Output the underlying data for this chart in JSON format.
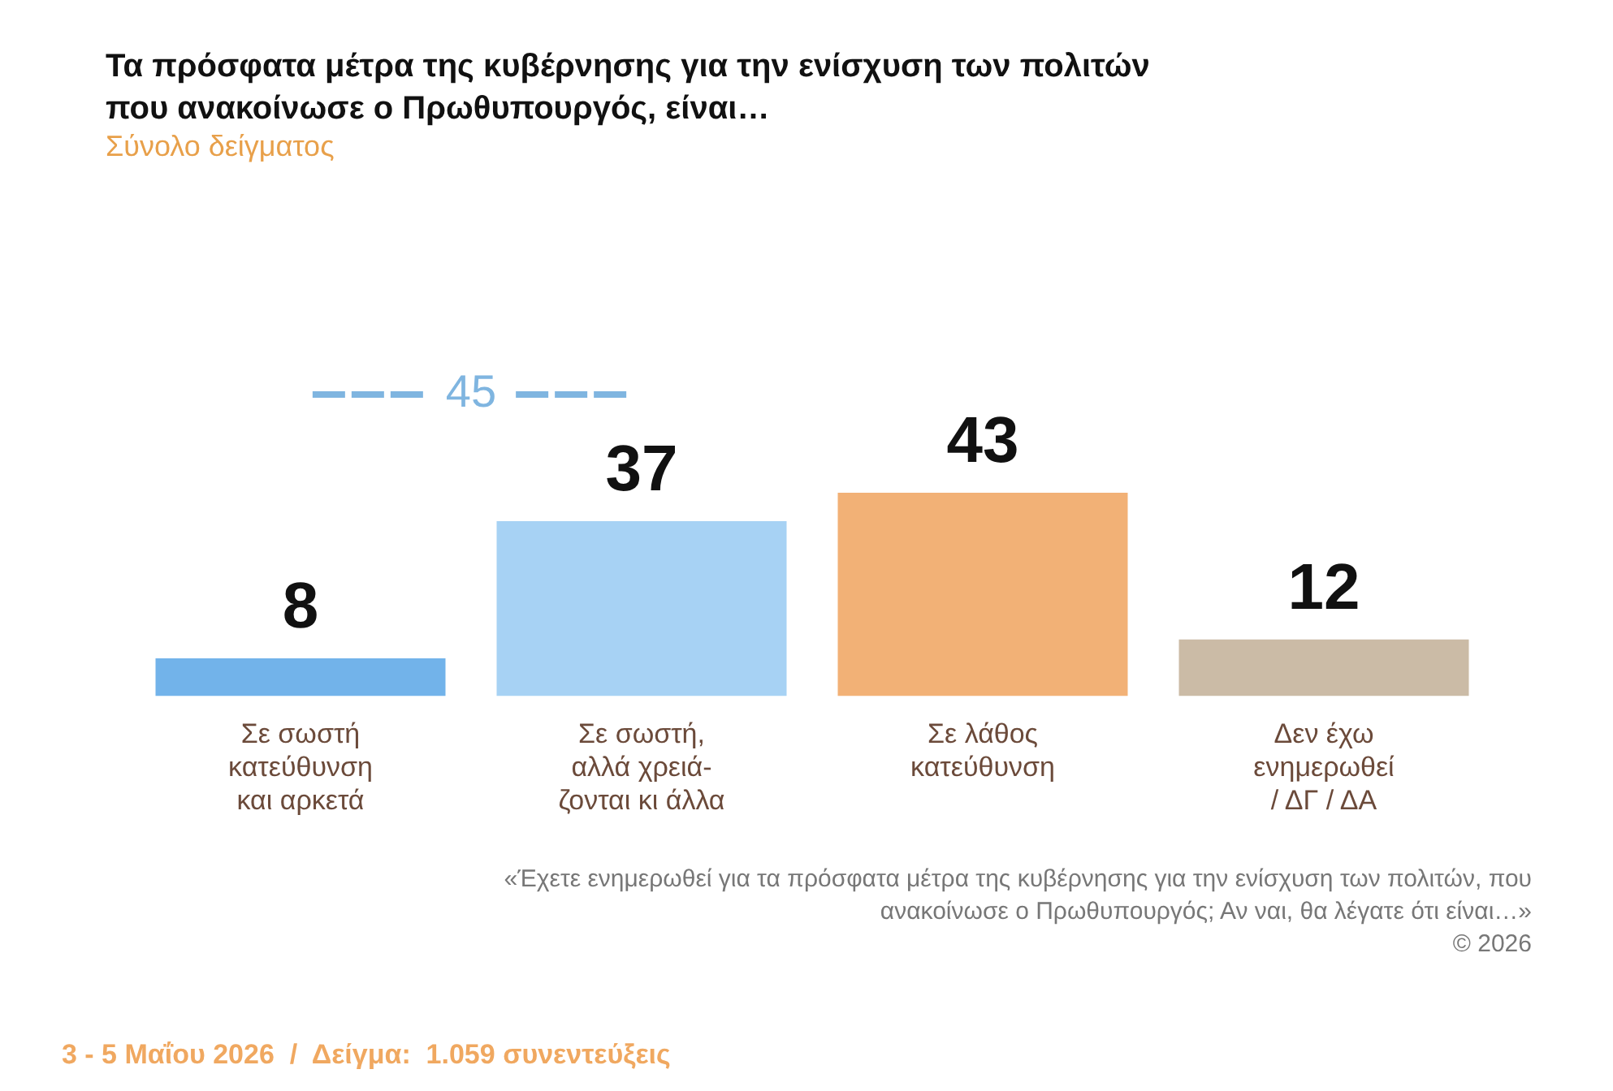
{
  "chart_data": {
    "type": "bar",
    "title": "Τα πρόσφατα μέτρα της κυβέρνησης για την ενίσχυση των πολιτών που ανακοίνωσε ο Πρωθυπουργός, είναι…",
    "subtitle": "Σύνολο δείγματος",
    "categories": [
      "Σε σωστή\nκατεύθυνση\nκαι αρκετά",
      "Σε σωστή,\nαλλά χρειά-\nζονται κι άλλα",
      "Σε λάθος\nκατεύθυνση",
      "Δεν έχω\nενημερωθεί\n/ ΔΓ / ΔΑ"
    ],
    "values": [
      8,
      37,
      43,
      12
    ],
    "colors": [
      "#72b3ea",
      "#a7d2f4",
      "#f2b176",
      "#cbbba6"
    ],
    "data_labels": true,
    "tick_labels": "x",
    "grid": false,
    "legend": false,
    "annotations": [
      "45",
      "«Έχετε ενημερωθεί για τα πρόσφατα μέτρα της κυβέρνησης για την ενίσχυση των πολιτών, που ανακοίνωσε ο Πρωθυπουργός; Αν ναι, θα λέγατε ότι είναι…»",
      "© 2026",
      "3 - 5 Μαΐου 2026  /  Δείγμα:  1.059 συνεντεύξεις"
    ]
  }
}
